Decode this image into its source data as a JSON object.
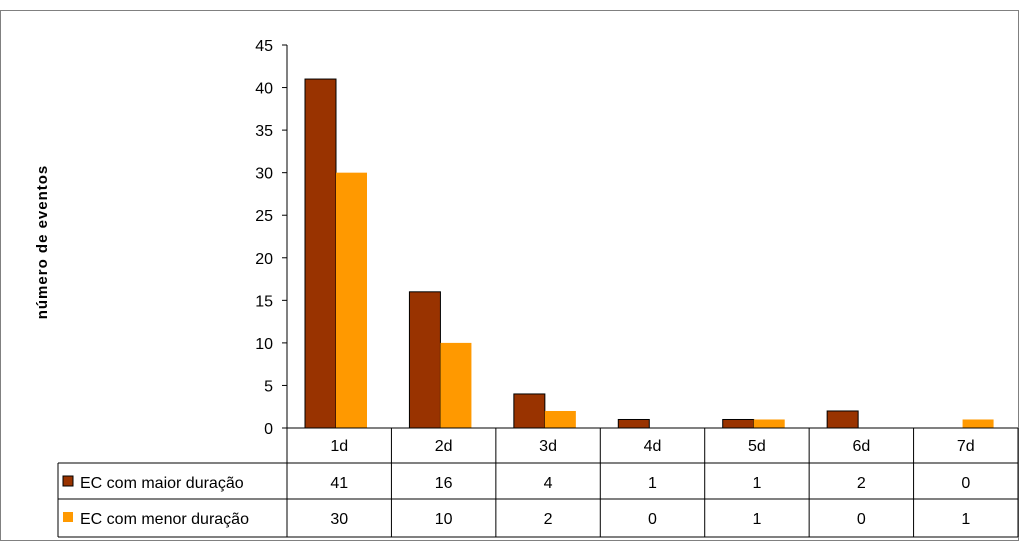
{
  "chart_data": {
    "type": "bar",
    "title": "",
    "xlabel": "",
    "ylabel": "número de eventos",
    "ylim": [
      0,
      45
    ],
    "yticks": [
      0,
      5,
      10,
      15,
      20,
      25,
      30,
      35,
      40,
      45
    ],
    "grid": false,
    "legend": "data-table-left",
    "categories": [
      "1d",
      "2d",
      "3d",
      "4d",
      "5d",
      "6d",
      "7d"
    ],
    "series": [
      {
        "name": "EC com maior duração",
        "color": "#993300",
        "values": [
          41,
          16,
          4,
          1,
          1,
          2,
          0
        ]
      },
      {
        "name": "EC com menor duração",
        "color": "#FF9900",
        "values": [
          30,
          10,
          2,
          0,
          1,
          0,
          1
        ]
      }
    ],
    "data_table": true
  }
}
